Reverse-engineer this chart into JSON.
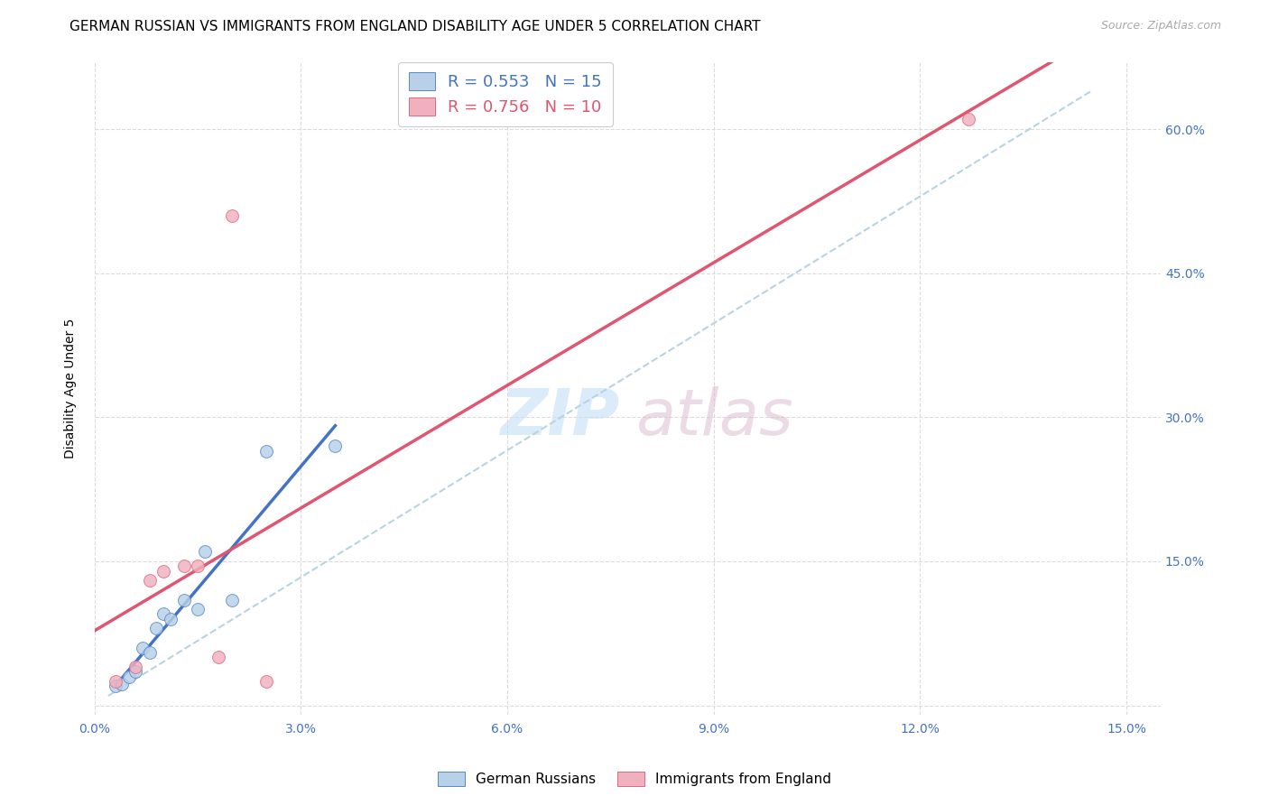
{
  "title": "GERMAN RUSSIAN VS IMMIGRANTS FROM ENGLAND DISABILITY AGE UNDER 5 CORRELATION CHART",
  "source": "Source: ZipAtlas.com",
  "ylabel": "Disability Age Under 5",
  "xlim": [
    0.0,
    0.155
  ],
  "ylim": [
    -0.01,
    0.67
  ],
  "xticks": [
    0.0,
    0.03,
    0.06,
    0.09,
    0.12,
    0.15
  ],
  "yticks": [
    0.0,
    0.15,
    0.3,
    0.45,
    0.6
  ],
  "xticklabels": [
    "0.0%",
    "3.0%",
    "6.0%",
    "9.0%",
    "12.0%",
    "15.0%"
  ],
  "yticklabels_right": [
    "",
    "15.0%",
    "30.0%",
    "45.0%",
    "60.0%"
  ],
  "legend_blue_label": "German Russians",
  "legend_pink_label": "Immigrants from England",
  "blue_R": "0.553",
  "blue_N": "15",
  "pink_R": "0.756",
  "pink_N": "10",
  "blue_fill": "#b8d0e8",
  "pink_fill": "#f0b0be",
  "blue_edge": "#5588cc",
  "pink_edge": "#e06880",
  "blue_line": "#4472c4",
  "pink_line": "#e05570",
  "dash_color": "#b8d4e0",
  "bg_color": "#ffffff",
  "grid_color": "#d8d8d8",
  "tick_color": "#4472c4",
  "blue_scatter_x": [
    0.003,
    0.004,
    0.005,
    0.006,
    0.007,
    0.008,
    0.009,
    0.01,
    0.011,
    0.013,
    0.015,
    0.016,
    0.02,
    0.025,
    0.035
  ],
  "blue_scatter_y": [
    0.02,
    0.022,
    0.03,
    0.035,
    0.06,
    0.055,
    0.08,
    0.095,
    0.09,
    0.11,
    0.1,
    0.16,
    0.11,
    0.265,
    0.27
  ],
  "pink_scatter_x": [
    0.003,
    0.006,
    0.008,
    0.01,
    0.013,
    0.015,
    0.018,
    0.02,
    0.025,
    0.127
  ],
  "pink_scatter_y": [
    0.025,
    0.04,
    0.13,
    0.14,
    0.145,
    0.145,
    0.05,
    0.51,
    0.025,
    0.61
  ],
  "blue_line_x": [
    0.003,
    0.025
  ],
  "pink_line_x_start": 0.0,
  "pink_line_x_end": 0.155,
  "dash_line": [
    [
      0.002,
      0.145
    ],
    [
      0.01,
      0.64
    ]
  ],
  "marker_size": 100
}
